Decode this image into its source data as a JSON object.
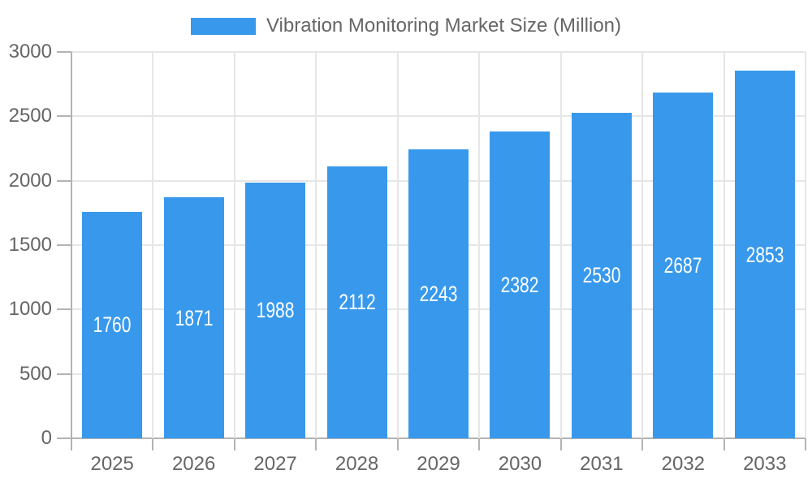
{
  "chart_data": {
    "type": "bar",
    "title": "",
    "legend_label": "Vibration Monitoring Market Size (Million)",
    "legend_position": "top",
    "categories": [
      "2025",
      "2026",
      "2027",
      "2028",
      "2029",
      "2030",
      "2031",
      "2032",
      "2033"
    ],
    "values": [
      1760,
      1871,
      1988,
      2112,
      2243,
      2382,
      2530,
      2687,
      2853
    ],
    "xlabel": "",
    "ylabel": "",
    "ylim": [
      0,
      3000
    ],
    "yticks": [
      0,
      500,
      1000,
      1500,
      2000,
      2500,
      3000
    ],
    "grid": true,
    "colors": {
      "bar_fill": "#3899EC",
      "bar_value_text": "#FFFFFF",
      "axis_text": "#666666",
      "grid_line": "#E6E6E6",
      "axis_line": "#B3B3B3",
      "background": "#FFFFFF"
    }
  }
}
